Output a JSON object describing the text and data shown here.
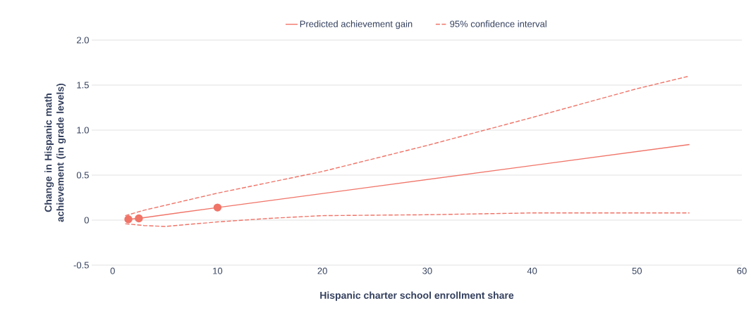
{
  "chart_data": {
    "type": "line",
    "xlabel": "Hispanic charter school enrollment share",
    "ylabel": "Change in Hispanic math achievement (in grade levels)",
    "xlim": [
      -2,
      60
    ],
    "xticks": [
      0,
      10,
      20,
      30,
      40,
      50,
      60
    ],
    "ylim": [
      -0.5,
      2.0
    ],
    "yticks": [
      {
        "value": -0.5,
        "label": "-0.5"
      },
      0,
      {
        "value": 0.5,
        "label": "0.5"
      },
      {
        "value": 1.0,
        "label": "1.0"
      },
      {
        "value": 1.5,
        "label": "1.5"
      },
      {
        "value": 2.0,
        "label": "2.0"
      }
    ],
    "grid": "y",
    "legend": "top",
    "series": [
      {
        "name": "Predicted achievement gain",
        "color": "#f07468",
        "line_style": "solid",
        "marker": "none",
        "x": [
          1.5,
          2.5,
          10,
          55
        ],
        "values": [
          0.01,
          0.02,
          0.14,
          0.84
        ]
      },
      {
        "type": "scatter",
        "color": "#f07468",
        "marker": "circle",
        "x": [
          1.5,
          2.5,
          10
        ],
        "values": [
          0.01,
          0.02,
          0.14
        ]
      },
      {
        "name": "95% confidence interval",
        "color": "#f07468",
        "line_style": "dashed",
        "marker": "none",
        "x": [
          1.2,
          3,
          10,
          20,
          30,
          40,
          50,
          55
        ],
        "values": [
          0.05,
          0.11,
          0.3,
          0.54,
          0.83,
          1.14,
          1.46,
          1.6
        ]
      },
      {
        "color": "#f07468",
        "line_style": "dashed",
        "marker": "none",
        "x": [
          1.2,
          3,
          5,
          10,
          15,
          20,
          30,
          40,
          55
        ],
        "values": [
          -0.04,
          -0.06,
          -0.07,
          -0.02,
          0.02,
          0.05,
          0.06,
          0.08,
          0.08
        ]
      }
    ]
  }
}
